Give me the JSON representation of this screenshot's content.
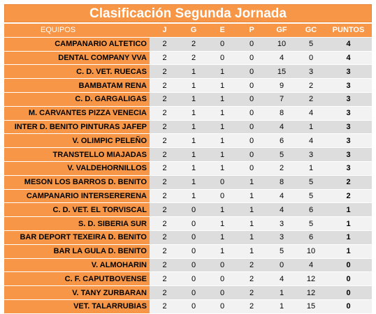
{
  "title": "Clasificación Segunda Jornada",
  "columns": {
    "team": "EQUIPOS",
    "j": "J",
    "g": "G",
    "e": "E",
    "p": "P",
    "gf": "GF",
    "gc": "GC",
    "pts": "PUNTOS"
  },
  "rows": [
    {
      "team": "CAMPANARIO ALTETICO",
      "j": "2",
      "g": "2",
      "e": "0",
      "p": "0",
      "gf": "10",
      "gc": "5",
      "pts": "4"
    },
    {
      "team": "DENTAL COMPANY VVA",
      "j": "2",
      "g": "2",
      "e": "0",
      "p": "0",
      "gf": "4",
      "gc": "0",
      "pts": "4"
    },
    {
      "team": "C. D. VET. RUECAS",
      "j": "2",
      "g": "1",
      "e": "1",
      "p": "0",
      "gf": "15",
      "gc": "3",
      "pts": "3"
    },
    {
      "team": "BAMBATAM RENA",
      "j": "2",
      "g": "1",
      "e": "1",
      "p": "0",
      "gf": "9",
      "gc": "2",
      "pts": "3"
    },
    {
      "team": "C. D. GARGALIGAS",
      "j": "2",
      "g": "1",
      "e": "1",
      "p": "0",
      "gf": "7",
      "gc": "2",
      "pts": "3"
    },
    {
      "team": "M. CARVANTES PIZZA VENECIA",
      "j": "2",
      "g": "1",
      "e": "1",
      "p": "0",
      "gf": "8",
      "gc": "4",
      "pts": "3"
    },
    {
      "team": "INTER D. BENITO PINTURAS JAFEP",
      "j": "2",
      "g": "1",
      "e": "1",
      "p": "0",
      "gf": "4",
      "gc": "1",
      "pts": "3"
    },
    {
      "team": "V. OLIMPIC PELEÑO",
      "j": "2",
      "g": "1",
      "e": "1",
      "p": "0",
      "gf": "6",
      "gc": "4",
      "pts": "3"
    },
    {
      "team": "TRANSTELLO MIAJADAS",
      "j": "2",
      "g": "1",
      "e": "1",
      "p": "0",
      "gf": "5",
      "gc": "3",
      "pts": "3"
    },
    {
      "team": "V. VALDEHORNILLOS",
      "j": "2",
      "g": "1",
      "e": "1",
      "p": "0",
      "gf": "2",
      "gc": "1",
      "pts": "3"
    },
    {
      "team": "MESON LOS BARROS D. BENITO",
      "j": "2",
      "g": "1",
      "e": "0",
      "p": "1",
      "gf": "8",
      "gc": "5",
      "pts": "2"
    },
    {
      "team": "CAMPANARIO INTERSERERENA",
      "j": "2",
      "g": "1",
      "e": "0",
      "p": "1",
      "gf": "4",
      "gc": "5",
      "pts": "2"
    },
    {
      "team": "C. D. VET. EL TORVISCAL",
      "j": "2",
      "g": "0",
      "e": "1",
      "p": "1",
      "gf": "4",
      "gc": "6",
      "pts": "1"
    },
    {
      "team": "S. D. SIBERIA SUR",
      "j": "2",
      "g": "0",
      "e": "1",
      "p": "1",
      "gf": "3",
      "gc": "5",
      "pts": "1"
    },
    {
      "team": "BAR DEPORT TEXEIRA D. BENITO",
      "j": "2",
      "g": "0",
      "e": "1",
      "p": "1",
      "gf": "3",
      "gc": "6",
      "pts": "1"
    },
    {
      "team": "BAR LA GULA D. BENITO",
      "j": "2",
      "g": "0",
      "e": "1",
      "p": "1",
      "gf": "5",
      "gc": "10",
      "pts": "1"
    },
    {
      "team": "V. ALMOHARIN",
      "j": "2",
      "g": "0",
      "e": "0",
      "p": "2",
      "gf": "0",
      "gc": "4",
      "pts": "0"
    },
    {
      "team": "C. F. CAPUTBOVENSE",
      "j": "2",
      "g": "0",
      "e": "0",
      "p": "2",
      "gf": "4",
      "gc": "12",
      "pts": "0"
    },
    {
      "team": "V. TANY ZURBARAN",
      "j": "2",
      "g": "0",
      "e": "0",
      "p": "2",
      "gf": "1",
      "gc": "12",
      "pts": "0"
    },
    {
      "team": "VET. TALARRUBIAS",
      "j": "2",
      "g": "0",
      "e": "0",
      "p": "2",
      "gf": "1",
      "gc": "15",
      "pts": "0"
    }
  ],
  "colors": {
    "header_orange": "#F79646",
    "row_gray_dark": "#DDDDDD",
    "row_gray_light": "#F2F2F2",
    "header_text": "#FFFFFF"
  }
}
